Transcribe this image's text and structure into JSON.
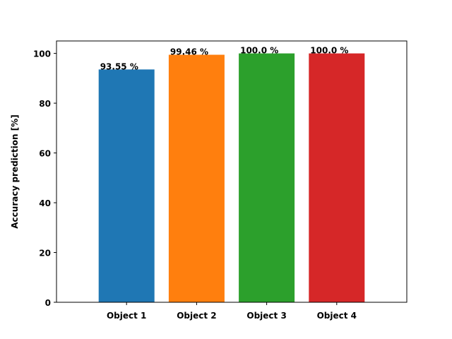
{
  "chart_data": {
    "type": "bar",
    "categories": [
      "Object 1",
      "Object 2",
      "Object 3",
      "Object 4"
    ],
    "values": [
      93.55,
      99.46,
      100.0,
      100.0
    ],
    "data_labels": [
      "93.55 %",
      "99.46 %",
      "100.0 %",
      "100.0 %"
    ],
    "colors": [
      "#1f77b4",
      "#ff7f0e",
      "#2ca02c",
      "#d62728"
    ],
    "title": "",
    "xlabel": "",
    "ylabel": "Accuracy prediction [%]",
    "ylim": [
      0,
      105
    ],
    "yticks": [
      0,
      20,
      40,
      60,
      80,
      100
    ],
    "ytick_labels": [
      "0",
      "20",
      "40",
      "60",
      "80",
      "100"
    ],
    "grid": false,
    "legend": "none"
  }
}
